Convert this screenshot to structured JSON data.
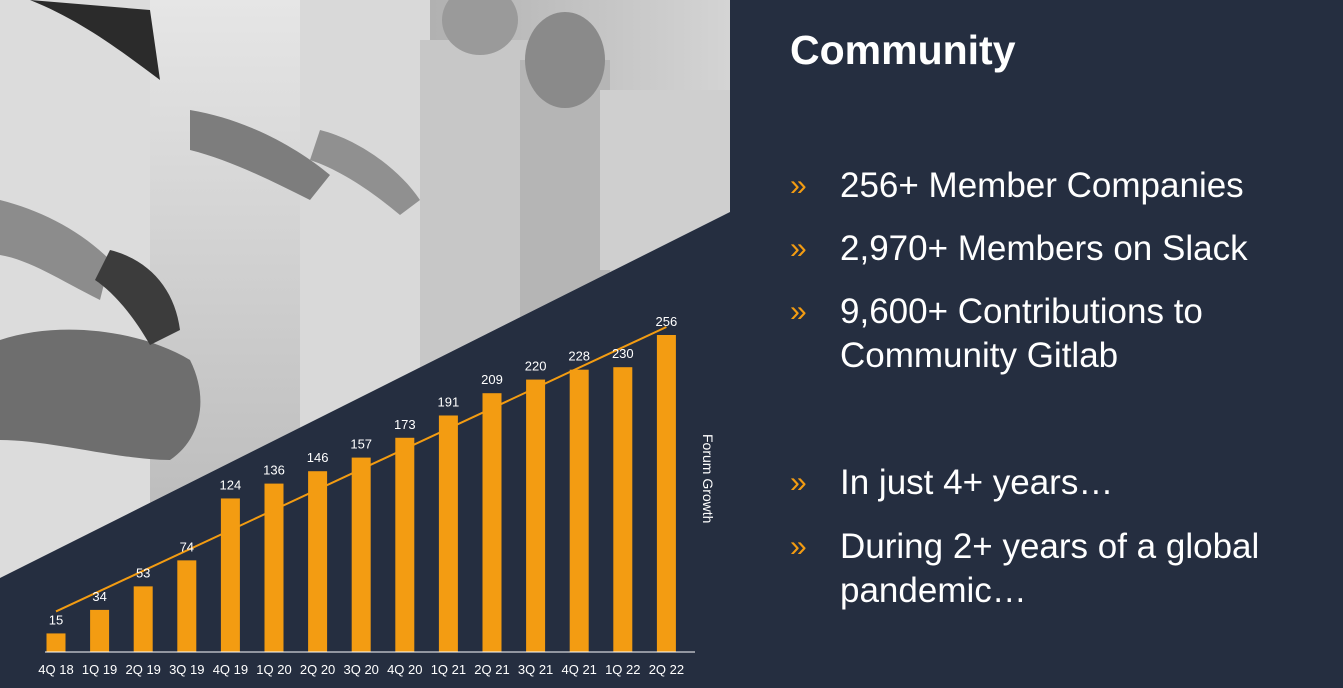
{
  "slide": {
    "title": "Community",
    "bullets_top": [
      {
        "marker": "»",
        "text": "256+ Member Companies"
      },
      {
        "marker": "»",
        "text": "2,970+ Members on Slack"
      },
      {
        "marker": "»",
        "text": "9,600+ Contributions to Community Gitlab"
      }
    ],
    "bullets_bottom": [
      {
        "marker": "»",
        "text": "In just 4+ years…"
      },
      {
        "marker": "»",
        "text": "During 2+ years of a global pandemic…"
      }
    ]
  },
  "colors": {
    "background": "#252e40",
    "accent": "#f39c12",
    "text": "#ffffff"
  },
  "photo": {
    "description_icon": "people-linking-arms-photo"
  },
  "chart_data": {
    "type": "bar",
    "categories": [
      "4Q 18",
      "1Q 19",
      "2Q 19",
      "3Q 19",
      "4Q 19",
      "1Q 20",
      "2Q 20",
      "3Q 20",
      "4Q 20",
      "1Q 21",
      "2Q 21",
      "3Q 21",
      "4Q 21",
      "1Q 22",
      "2Q 22"
    ],
    "values": [
      15,
      34,
      53,
      74,
      124,
      136,
      146,
      157,
      173,
      191,
      209,
      220,
      228,
      230,
      256
    ],
    "trendline": true,
    "ylabel": "Forum Growth",
    "ylim": [
      0,
      256
    ],
    "bar_color": "#f39c12",
    "grid": false
  }
}
